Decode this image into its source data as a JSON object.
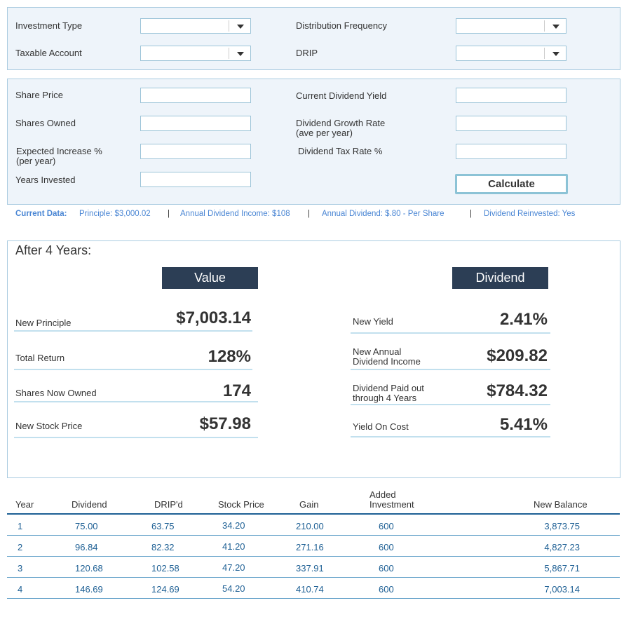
{
  "settings": {
    "fields": [
      {
        "label": "Investment Type"
      },
      {
        "label": "Distribution Frequency"
      },
      {
        "label": "Taxable Account"
      },
      {
        "label": "DRIP"
      }
    ]
  },
  "inputs": {
    "fields": [
      {
        "label": [
          "Share Price"
        ]
      },
      {
        "label": [
          "Current Dividend Yield"
        ]
      },
      {
        "label": [
          "Shares Owned"
        ]
      },
      {
        "label": [
          "Dividend Growth Rate",
          "(ave per year)"
        ]
      },
      {
        "label": [
          "Expected Increase %",
          "(per year)"
        ]
      },
      {
        "label": [
          "Dividend Tax Rate %"
        ]
      },
      {
        "label": [
          "Years Invested"
        ]
      }
    ],
    "button": "Calculate"
  },
  "current_data": {
    "label": "Current Data:",
    "items": [
      "Principle: $3,000.02",
      "Annual Dividend Income: $108",
      "Annual Dividend: $.80 - Per Share",
      "Dividend Reinvested: Yes"
    ]
  },
  "results": {
    "title": "After 4 Years:",
    "value_header": "Value",
    "dividend_header": "Dividend",
    "value_rows": [
      {
        "label": [
          "New Principle"
        ],
        "value": "$7,003.14"
      },
      {
        "label": [
          "Total Return"
        ],
        "value": "128%"
      },
      {
        "label": [
          "Shares Now Owned"
        ],
        "value": "174"
      },
      {
        "label": [
          "New Stock Price"
        ],
        "value": "$57.98"
      }
    ],
    "dividend_rows": [
      {
        "label": [
          "New Yield"
        ],
        "value": "2.41%"
      },
      {
        "label": [
          "New Annual",
          "Dividend Income"
        ],
        "value": "$209.82"
      },
      {
        "label": [
          "Dividend Paid out",
          "through 4 Years"
        ],
        "value": "$784.32"
      },
      {
        "label": [
          "Yield On Cost"
        ],
        "value": "5.41%"
      }
    ]
  },
  "table": {
    "headers": [
      [
        "Year"
      ],
      [
        "Dividend"
      ],
      [
        "DRIP'd"
      ],
      [
        "Stock Price"
      ],
      [
        "Gain"
      ],
      [
        "Added",
        "Investment"
      ],
      [
        "New Balance"
      ]
    ],
    "rows": [
      [
        "1",
        "75.00",
        "63.75",
        "34.20",
        "210.00",
        "600",
        "3,873.75"
      ],
      [
        "2",
        "96.84",
        "82.32",
        "41.20",
        "271.16",
        "600",
        "4,827.23"
      ],
      [
        "3",
        "120.68",
        "102.58",
        "47.20",
        "337.91",
        "600",
        "5,867.71"
      ],
      [
        "4",
        "146.69",
        "124.69",
        "54.20",
        "410.74",
        "600",
        "7,003.14"
      ]
    ]
  }
}
